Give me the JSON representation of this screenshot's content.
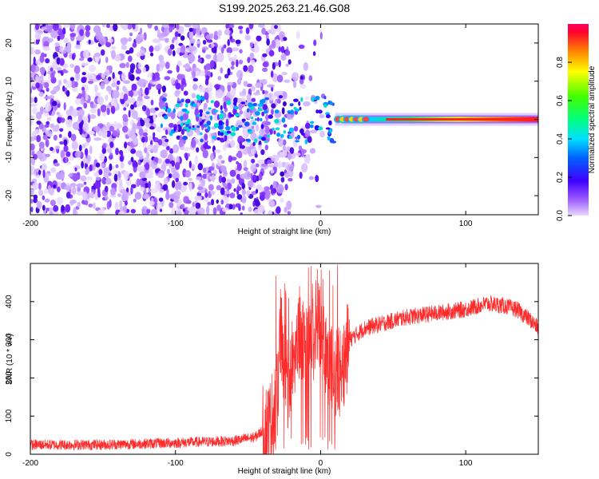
{
  "title": "S199.2025.263.21.46.G08",
  "colors": {
    "snr_line": "#ff2a2a",
    "spec_low": "#d9b8ff",
    "spec_mid": "#6a14ff",
    "spec_high": "#ff0040"
  },
  "chart_data": [
    {
      "type": "heatmap",
      "title": "S199.2025.263.21.46.G08",
      "xlabel": "Height of straight line (km)",
      "ylabel": "Frequency (Hz)",
      "xlim": [
        -200,
        150
      ],
      "ylim": [
        -25,
        25
      ],
      "xticks": [
        "-200",
        "-100",
        "0",
        "100"
      ],
      "yticks": [
        "-20",
        "-10",
        "0",
        "10",
        "20"
      ],
      "xticks_values": [
        -200,
        -100,
        0,
        100
      ],
      "yticks_values": [
        -20,
        -10,
        0,
        10,
        20
      ],
      "colorbar": {
        "label": "Normalized spectral amplitude",
        "range": [
          0,
          1
        ],
        "ticks": [
          "0.0",
          "0.2",
          "0.4",
          "0.6",
          "0.8"
        ],
        "ticks_values": [
          0,
          0.2,
          0.4,
          0.6,
          0.8
        ],
        "colormap": "rainbow (violet → blue → cyan → green → yellow → red)"
      },
      "features": {
        "noise_region_height_km": [
          -200,
          10
        ],
        "coherent_band_height_km": [
          10,
          150
        ],
        "coherent_band_frequency_hz": [
          -1,
          1
        ],
        "peak_amplitude_near_height_km": [
          20,
          150
        ]
      },
      "grid": false
    },
    {
      "type": "line",
      "xlabel": "Height of straight line (km)",
      "ylabel": "SNR (10 * v/v)",
      "xlim": [
        -200,
        150
      ],
      "ylim": [
        0,
        500
      ],
      "xticks": [
        "-200",
        "-100",
        "0",
        "100"
      ],
      "yticks": [
        "0",
        "100",
        "200",
        "300",
        "400"
      ],
      "xticks_values": [
        -200,
        -100,
        0,
        100
      ],
      "yticks_values": [
        0,
        100,
        200,
        300,
        400
      ],
      "series_points": {
        "x": [
          -200,
          -150,
          -100,
          -60,
          -45,
          -35,
          -30,
          -28,
          -25,
          -22,
          -20,
          -15,
          -10,
          -5,
          0,
          5,
          10,
          15,
          20,
          30,
          40,
          50,
          60,
          80,
          100,
          115,
          125,
          135,
          145,
          150
        ],
        "y": [
          25,
          25,
          30,
          35,
          45,
          80,
          150,
          330,
          250,
          150,
          250,
          300,
          280,
          300,
          350,
          250,
          200,
          230,
          300,
          330,
          340,
          350,
          360,
          370,
          380,
          395,
          390,
          380,
          350,
          330
        ]
      },
      "grid": false
    }
  ]
}
